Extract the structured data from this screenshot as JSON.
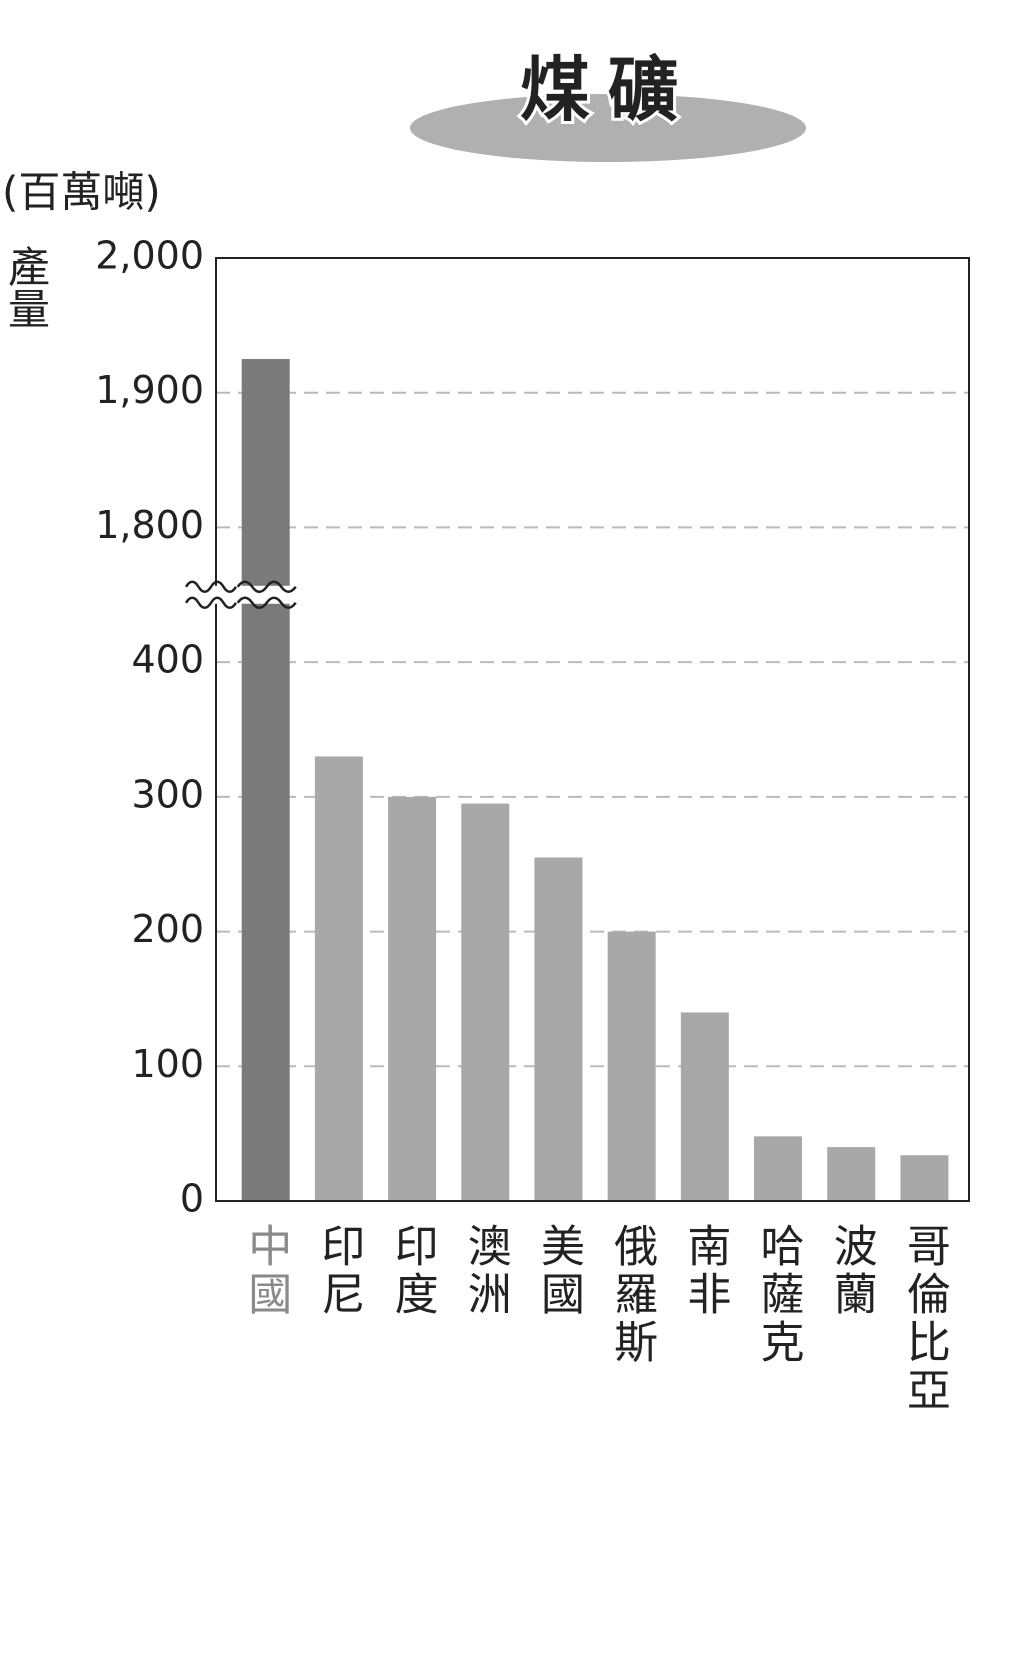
{
  "chart_data": {
    "type": "bar",
    "title": "煤礦",
    "unit": "(百萬噸)",
    "ylabel": "產量",
    "categories": [
      "中國",
      "印尼",
      "印度",
      "澳洲",
      "美國",
      "俄羅斯",
      "南非",
      "哈薩克",
      "波蘭",
      "哥倫比亞"
    ],
    "values": [
      1925,
      330,
      300,
      295,
      255,
      200,
      140,
      48,
      40,
      34
    ],
    "colors": [
      "#7a7a7a",
      "#a8a8a8",
      "#a8a8a8",
      "#a8a8a8",
      "#a8a8a8",
      "#a8a8a8",
      "#a8a8a8",
      "#a8a8a8",
      "#a8a8a8",
      "#a8a8a8"
    ],
    "label_colors": [
      "#8a8a8a",
      "#222222",
      "#222222",
      "#222222",
      "#222222",
      "#222222",
      "#222222",
      "#222222",
      "#222222",
      "#222222"
    ],
    "ylim": [
      0,
      2000
    ],
    "axis_break": [
      450,
      1750
    ],
    "yticks": [
      0,
      100,
      200,
      300,
      400,
      {
        "value": 1800,
        "label": "1,800"
      },
      {
        "value": 1900,
        "label": "1,900"
      },
      {
        "value": 2000,
        "label": "2,000"
      }
    ],
    "grid": true
  }
}
